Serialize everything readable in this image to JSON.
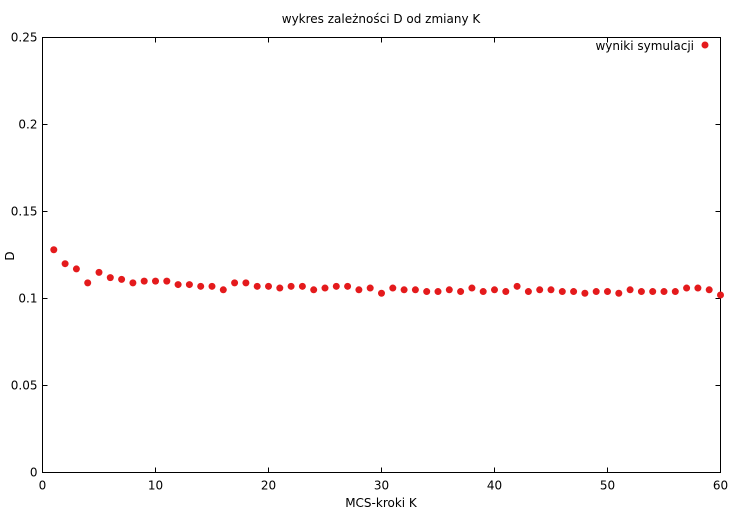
{
  "chart_data": {
    "type": "scatter",
    "title": "wykres zależności D od zmiany K",
    "xlabel": "MCS-kroki K",
    "ylabel": "D",
    "xlim": [
      0,
      60
    ],
    "ylim": [
      0,
      0.25
    ],
    "xticks": [
      0,
      10,
      20,
      30,
      40,
      50,
      60
    ],
    "yticks": [
      0,
      0.05,
      0.1,
      0.15,
      0.2,
      0.25
    ],
    "grid": false,
    "legend_position": "top-right",
    "series": [
      {
        "name": "wyniki symulacji",
        "color": "#e41a1c",
        "marker": "circle",
        "x": [
          1,
          2,
          3,
          4,
          5,
          6,
          7,
          8,
          9,
          10,
          11,
          12,
          13,
          14,
          15,
          16,
          17,
          18,
          19,
          20,
          21,
          22,
          23,
          24,
          25,
          26,
          27,
          28,
          29,
          30,
          31,
          32,
          33,
          34,
          35,
          36,
          37,
          38,
          39,
          40,
          41,
          42,
          43,
          44,
          45,
          46,
          47,
          48,
          49,
          50,
          51,
          52,
          53,
          54,
          55,
          56,
          57,
          58,
          59,
          60
        ],
        "y": [
          0.128,
          0.12,
          0.117,
          0.109,
          0.115,
          0.112,
          0.111,
          0.109,
          0.11,
          0.11,
          0.11,
          0.108,
          0.108,
          0.107,
          0.107,
          0.105,
          0.109,
          0.109,
          0.107,
          0.107,
          0.106,
          0.107,
          0.107,
          0.105,
          0.106,
          0.107,
          0.107,
          0.105,
          0.106,
          0.103,
          0.106,
          0.105,
          0.105,
          0.104,
          0.104,
          0.105,
          0.104,
          0.106,
          0.104,
          0.105,
          0.104,
          0.107,
          0.104,
          0.105,
          0.105,
          0.104,
          0.104,
          0.103,
          0.104,
          0.104,
          0.103,
          0.105,
          0.104,
          0.104,
          0.104,
          0.104,
          0.106,
          0.106,
          0.105,
          0.102
        ]
      }
    ]
  }
}
